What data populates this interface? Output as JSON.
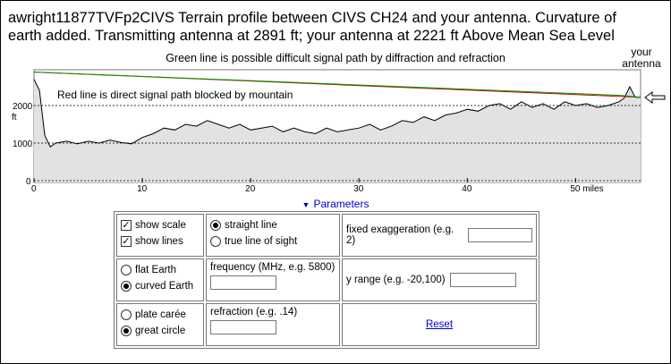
{
  "title": "awright11877TVFp2CIVS  Terrain profile between CIVS CH24 and your antenna. Curvature of earth added. Transmitting antenna at 2891 ft; your antenna at 2221 ft Above Mean Sea Level",
  "subtitle": "Green line is possible difficult signal path by diffraction and refraction",
  "your_antenna_label": [
    "your",
    "antenna"
  ],
  "chart": {
    "annotation": "Red line is direct signal path blocked by mountain",
    "y_unit": "ft",
    "y_ticks": [
      "2000",
      "1000",
      "0"
    ],
    "x_ticks": [
      "0",
      "10",
      "20",
      "30",
      "40",
      "50 miles"
    ],
    "colors": {
      "direct_path": "#cc0000",
      "diffraction_path": "#009900",
      "terrain": "#000000",
      "fill": "#e6e6e6"
    }
  },
  "chart_data": {
    "type": "line",
    "xlabel": "miles",
    "ylabel": "ft",
    "xlim": [
      0,
      56
    ],
    "ylim": [
      0,
      2900
    ],
    "series": [
      {
        "x": [
          0,
          0.5,
          1,
          1.5,
          2,
          3,
          4,
          5,
          6,
          7,
          8,
          9,
          10,
          11,
          12,
          13,
          14,
          15,
          16,
          17,
          18,
          19,
          20,
          21,
          22,
          23,
          24,
          25,
          26,
          27,
          28,
          29,
          30,
          31,
          32,
          33,
          34,
          35,
          36,
          37,
          38,
          39,
          40,
          41,
          42,
          43,
          44,
          45,
          46,
          47,
          48,
          49,
          50,
          51,
          52,
          53,
          54,
          54.5,
          55,
          55.5,
          56
        ],
        "y": [
          2700,
          2400,
          1200,
          900,
          1000,
          1050,
          980,
          1050,
          1000,
          1080,
          1020,
          980,
          1150,
          1250,
          1400,
          1350,
          1500,
          1450,
          1600,
          1500,
          1400,
          1500,
          1350,
          1400,
          1450,
          1300,
          1400,
          1300,
          1250,
          1400,
          1300,
          1350,
          1400,
          1500,
          1350,
          1450,
          1600,
          1550,
          1700,
          1600,
          1750,
          1800,
          1900,
          1850,
          2000,
          2050,
          1900,
          2100,
          1950,
          2050,
          1900,
          2100,
          2000,
          2050,
          1950,
          2000,
          2100,
          2200,
          2500,
          2221,
          2221
        ]
      },
      {
        "x": [
          0,
          56
        ],
        "y": [
          2891,
          2221
        ]
      }
    ]
  },
  "arrow_icon": "left-arrow-icon",
  "params_label": "Parameters",
  "controls": {
    "show_scale": "show scale",
    "show_lines": "show lines",
    "straight_line": "straight line",
    "true_line_of_sight": "true line of sight",
    "fixed_exaggeration": "fixed exaggeration (e.g. 2)",
    "flat_earth": "flat Earth",
    "curved_earth": "curved Earth",
    "frequency": "frequency (MHz, e.g. 5800)",
    "y_range": "y range (e.g. -20,100)",
    "plate_caree": "plate carée",
    "great_circle": "great circle",
    "refraction": "refraction (e.g. .14)",
    "reset": "Reset"
  }
}
